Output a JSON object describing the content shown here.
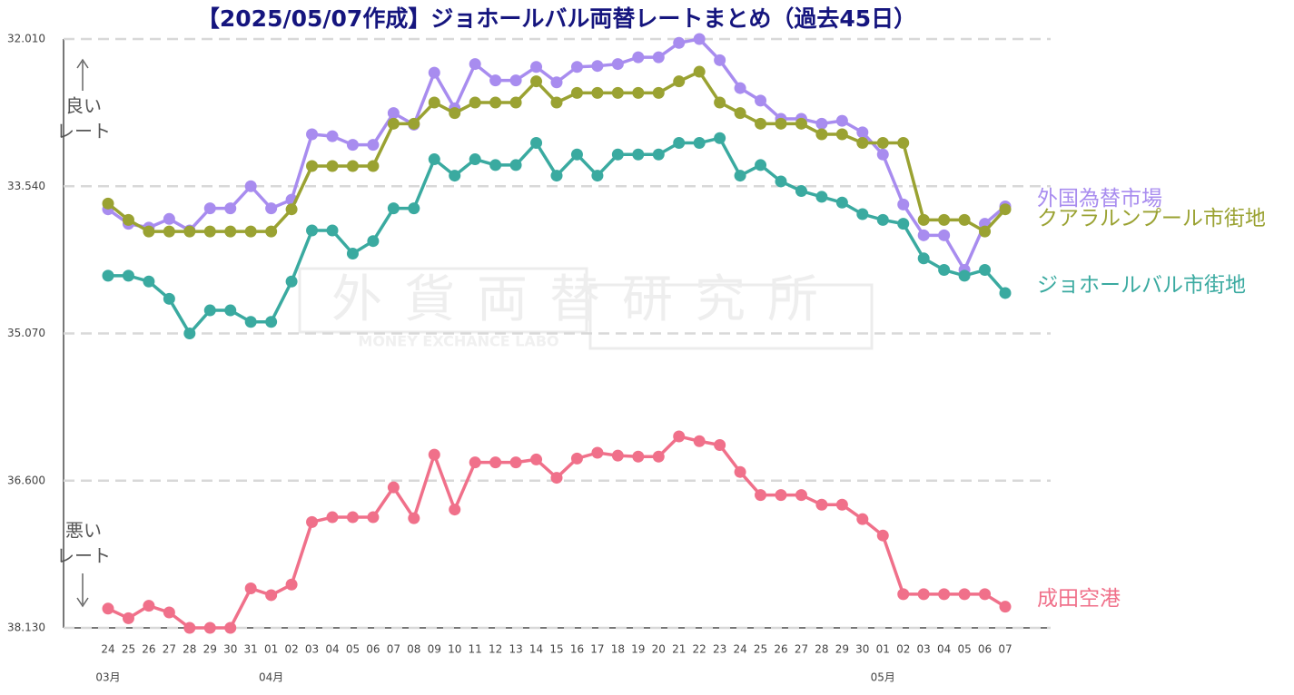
{
  "chart_data": {
    "type": "line",
    "title": "【2025/05/07作成】ジョホールバル両替レートまとめ（過去45日）",
    "categories": [
      "24",
      "25",
      "26",
      "27",
      "28",
      "29",
      "30",
      "31",
      "01",
      "02",
      "03",
      "04",
      "05",
      "06",
      "07",
      "08",
      "09",
      "10",
      "11",
      "12",
      "13",
      "14",
      "15",
      "16",
      "17",
      "18",
      "19",
      "20",
      "21",
      "22",
      "23",
      "24",
      "25",
      "26",
      "27",
      "28",
      "29",
      "30",
      "01",
      "02",
      "03",
      "04",
      "05",
      "06",
      "07"
    ],
    "category_groups": [
      "03月",
      null,
      null,
      null,
      null,
      null,
      null,
      null,
      "04月",
      null,
      null,
      null,
      null,
      null,
      null,
      null,
      null,
      null,
      null,
      null,
      null,
      null,
      null,
      null,
      null,
      null,
      null,
      null,
      null,
      null,
      null,
      null,
      null,
      null,
      null,
      null,
      null,
      null,
      "05月",
      null,
      null,
      null,
      null,
      null,
      null
    ],
    "ylim": [
      38.13,
      32.01
    ],
    "yticks": [
      {
        "value": 32.01,
        "label": "32.010"
      },
      {
        "value": 33.54,
        "label": "33.540"
      },
      {
        "value": 35.07,
        "label": "35.070"
      },
      {
        "value": 36.6,
        "label": "36.600"
      },
      {
        "value": 38.13,
        "label": "38.130"
      }
    ],
    "grid": true,
    "better_label": [
      "良い",
      "レート"
    ],
    "worse_label": [
      "悪い",
      "レート"
    ],
    "watermark": {
      "title": "外貨両替研究所",
      "subtitle": "MONEY EXCHANCE LABO"
    },
    "series": [
      {
        "name": "外国為替市場",
        "color": "#a88cef",
        "values": [
          33.78,
          33.93,
          33.97,
          33.88,
          34.0,
          33.77,
          33.77,
          33.54,
          33.77,
          33.68,
          33.0,
          33.02,
          33.11,
          33.11,
          32.78,
          32.9,
          32.36,
          32.73,
          32.27,
          32.44,
          32.44,
          32.3,
          32.46,
          32.3,
          32.29,
          32.27,
          32.2,
          32.2,
          32.05,
          32.01,
          32.23,
          32.52,
          32.65,
          32.84,
          32.84,
          32.89,
          32.86,
          32.98,
          33.21,
          33.73,
          34.05,
          34.05,
          34.41,
          33.93,
          33.75
        ]
      },
      {
        "name": "クアラルンプール市街地",
        "color": "#9aa232",
        "values": [
          33.72,
          33.89,
          34.01,
          34.01,
          34.01,
          34.01,
          34.01,
          34.01,
          34.01,
          33.78,
          33.33,
          33.33,
          33.33,
          33.33,
          32.89,
          32.89,
          32.67,
          32.78,
          32.67,
          32.67,
          32.67,
          32.45,
          32.67,
          32.57,
          32.57,
          32.57,
          32.57,
          32.57,
          32.45,
          32.35,
          32.67,
          32.78,
          32.89,
          32.89,
          32.89,
          33.0,
          33.0,
          33.09,
          33.09,
          33.09,
          33.89,
          33.89,
          33.89,
          34.01,
          33.78
        ]
      },
      {
        "name": "ジョホールバル市街地",
        "color": "#3aaaa0",
        "values": [
          34.47,
          34.47,
          34.53,
          34.71,
          35.07,
          34.83,
          34.83,
          34.95,
          34.95,
          34.53,
          34.0,
          34.0,
          34.24,
          34.11,
          33.77,
          33.77,
          33.26,
          33.43,
          33.26,
          33.32,
          33.32,
          33.09,
          33.43,
          33.21,
          33.43,
          33.21,
          33.21,
          33.21,
          33.09,
          33.09,
          33.04,
          33.43,
          33.32,
          33.49,
          33.59,
          33.65,
          33.71,
          33.83,
          33.89,
          33.93,
          34.29,
          34.41,
          34.47,
          34.41,
          34.65
        ]
      },
      {
        "name": "成田空港",
        "color": "#f0708a",
        "values": [
          37.93,
          38.03,
          37.9,
          37.97,
          38.13,
          38.13,
          38.13,
          37.72,
          37.79,
          37.68,
          37.03,
          36.98,
          36.98,
          36.98,
          36.67,
          36.99,
          36.33,
          36.9,
          36.41,
          36.41,
          36.41,
          36.38,
          36.57,
          36.37,
          36.31,
          36.34,
          36.35,
          36.35,
          36.14,
          36.19,
          36.23,
          36.51,
          36.75,
          36.75,
          36.75,
          36.85,
          36.85,
          37.0,
          37.17,
          37.78,
          37.78,
          37.78,
          37.78,
          37.78,
          37.91
        ]
      }
    ]
  }
}
